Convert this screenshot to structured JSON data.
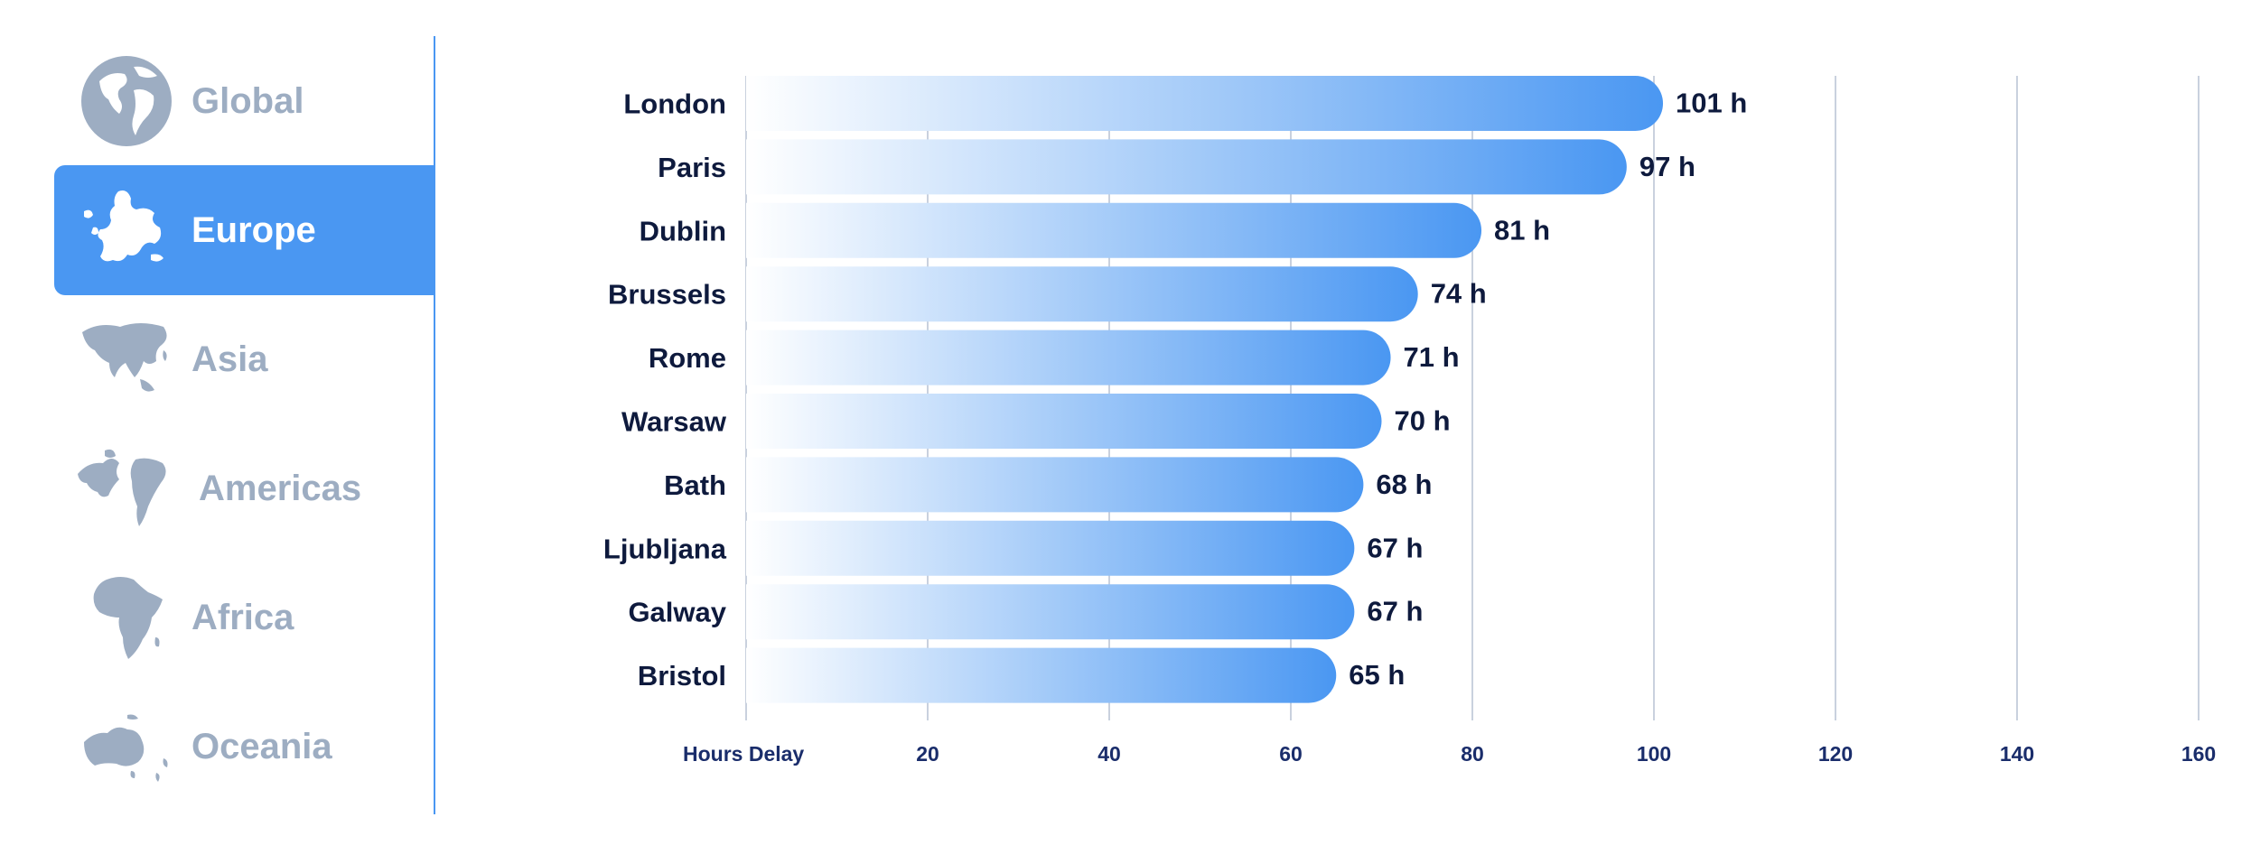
{
  "sidebar": {
    "items": [
      {
        "label": "Global",
        "icon": "globe-icon",
        "active": false
      },
      {
        "label": "Europe",
        "icon": "europe-map-icon",
        "active": true
      },
      {
        "label": "Asia",
        "icon": "asia-map-icon",
        "active": false
      },
      {
        "label": "Americas",
        "icon": "americas-map-icon",
        "active": false
      },
      {
        "label": "Africa",
        "icon": "africa-map-icon",
        "active": false
      },
      {
        "label": "Oceania",
        "icon": "oceania-map-icon",
        "active": false
      }
    ],
    "colors": {
      "active_bg": "#4a97f2",
      "inactive_text": "#9dadc2",
      "active_text": "#ffffff"
    }
  },
  "chart_data": {
    "type": "bar",
    "orientation": "horizontal",
    "categories": [
      "London",
      "Paris",
      "Dublin",
      "Brussels",
      "Rome",
      "Warsaw",
      "Bath",
      "Ljubljana",
      "Galway",
      "Bristol"
    ],
    "values": [
      101,
      97,
      81,
      74,
      71,
      70,
      68,
      67,
      67,
      65
    ],
    "value_labels": [
      "101 h",
      "97 h",
      "81 h",
      "74 h",
      "71 h",
      "70 h",
      "68 h",
      "67 h",
      "67 h",
      "65 h"
    ],
    "xlabel": "Hours Delay",
    "xlim": [
      0,
      160
    ],
    "xticks": [
      20,
      40,
      60,
      80,
      100,
      120,
      140,
      160
    ],
    "grid": true,
    "colors": {
      "bar_start": "#ffffff",
      "bar_end": "#4a97f2",
      "text": "#0e1a3d",
      "axis_text": "#1a2d6b"
    }
  }
}
